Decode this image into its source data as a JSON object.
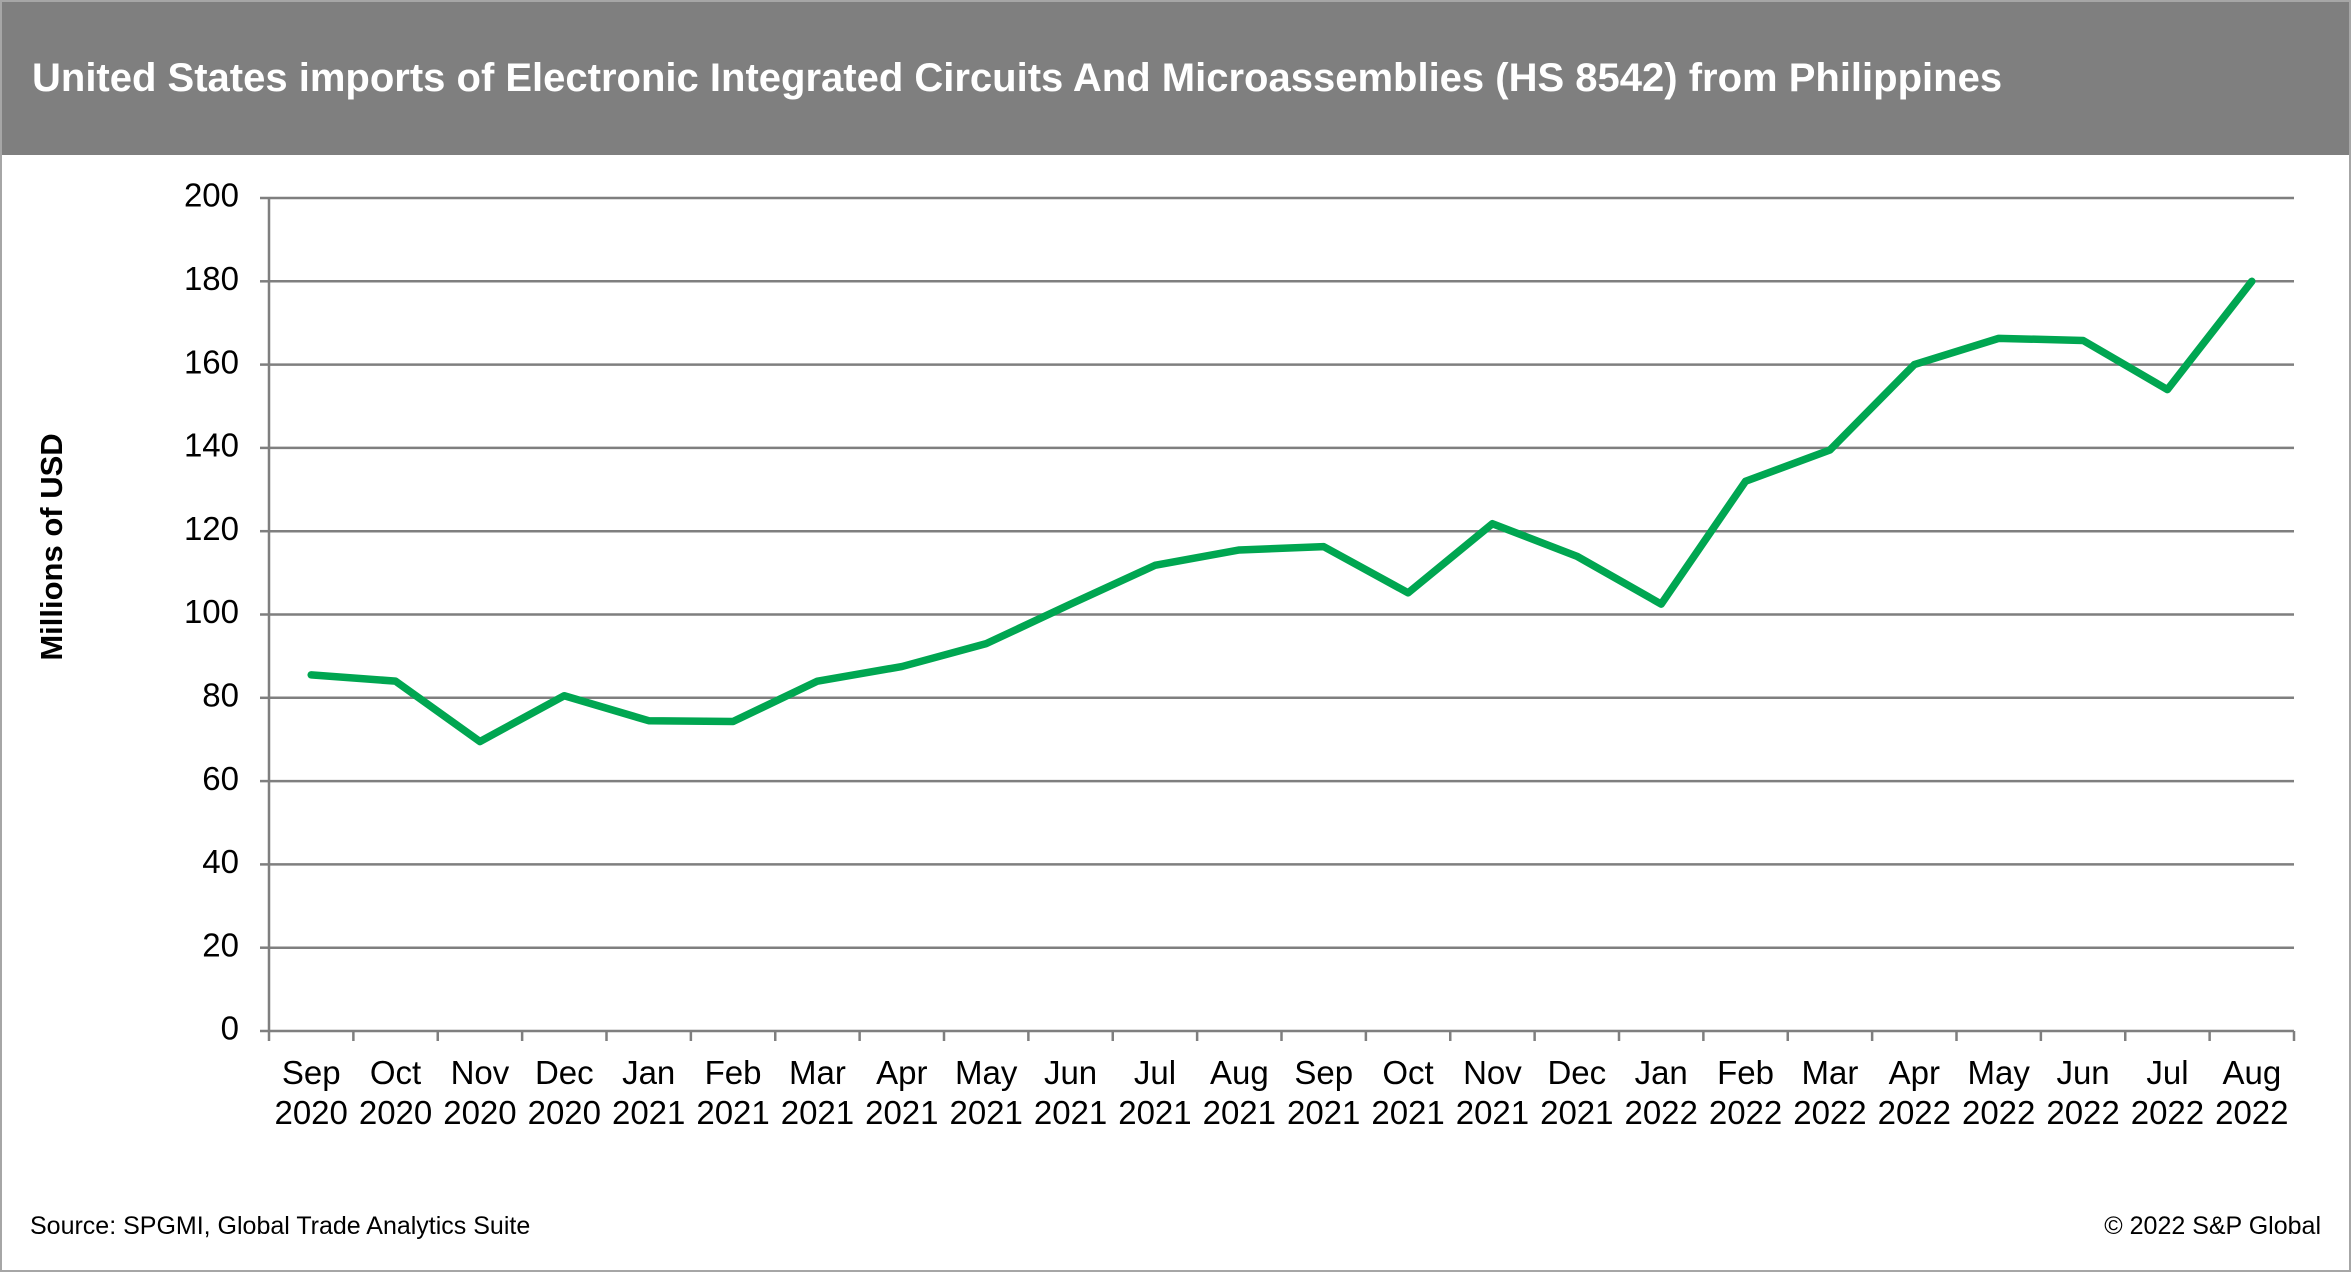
{
  "chart_data": {
    "type": "line",
    "title": "United States imports of Electronic Integrated Circuits And Microassemblies (HS 8542) from Philippines",
    "y_label": "Millions of USD",
    "source": "Source: SPGMI, Global Trade Analytics Suite",
    "copyright": "© 2022 S&P Global",
    "categories": [
      "Sep 2020",
      "Oct 2020",
      "Nov 2020",
      "Dec 2020",
      "Jan 2021",
      "Feb 2021",
      "Mar 2021",
      "Apr 2021",
      "May 2021",
      "Jun 2021",
      "Jul 2021",
      "Aug 2021",
      "Sep 2021",
      "Oct 2021",
      "Nov 2021",
      "Dec 2021",
      "Jan 2022",
      "Feb 2022",
      "Mar 2022",
      "Apr 2022",
      "May 2022",
      "Jun 2022",
      "Jul 2022",
      "Aug 2022"
    ],
    "values": [
      85.5,
      84,
      69.5,
      80.5,
      74.5,
      74.3,
      84,
      87.5,
      93,
      102.5,
      111.8,
      115.5,
      116.3,
      105.2,
      121.8,
      114,
      102.5,
      132,
      139.5,
      160,
      166.3,
      165.8,
      154,
      180
    ],
    "color": "#00a651",
    "ylim": [
      0,
      200
    ],
    "yticks": [
      0,
      20,
      40,
      60,
      80,
      100,
      120,
      140,
      160,
      180,
      200
    ],
    "grid": true
  }
}
